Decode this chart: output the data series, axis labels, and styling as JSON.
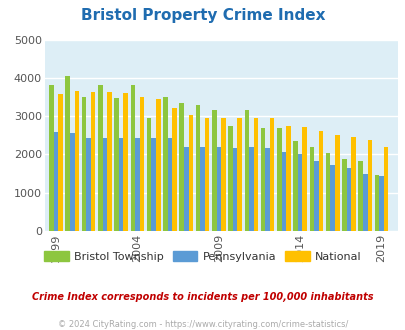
{
  "title": "Bristol Property Crime Index",
  "subtitle": "Crime Index corresponds to incidents per 100,000 inhabitants",
  "footer": "© 2024 CityRating.com - https://www.cityrating.com/crime-statistics/",
  "years": [
    1999,
    2000,
    2001,
    2002,
    2003,
    2004,
    2005,
    2006,
    2007,
    2008,
    2009,
    2010,
    2011,
    2012,
    2013,
    2014,
    2015,
    2016,
    2017,
    2018,
    2019
  ],
  "bristol": [
    3820,
    4040,
    3500,
    3820,
    3480,
    3820,
    2950,
    3500,
    3350,
    3300,
    3150,
    2730,
    3150,
    2680,
    2700,
    2350,
    2200,
    2050,
    1870,
    1840,
    1450
  ],
  "pennsylvania": [
    2580,
    2560,
    2440,
    2430,
    2420,
    2420,
    2430,
    2430,
    2200,
    2190,
    2200,
    2180,
    2200,
    2170,
    2060,
    2000,
    1830,
    1720,
    1640,
    1490,
    1440
  ],
  "national": [
    3580,
    3670,
    3640,
    3630,
    3600,
    3490,
    3440,
    3210,
    3040,
    2960,
    2960,
    2940,
    2940,
    2940,
    2730,
    2720,
    2600,
    2510,
    2450,
    2380,
    2200
  ],
  "bar_colors": {
    "bristol": "#8dc63f",
    "pennsylvania": "#5b9bd5",
    "national": "#ffc000"
  },
  "bg_color": "#ddeef6",
  "ylim": [
    0,
    5000
  ],
  "yticks": [
    0,
    1000,
    2000,
    3000,
    4000,
    5000
  ],
  "xtick_years": [
    1999,
    2004,
    2009,
    2014,
    2019
  ],
  "title_color": "#1f6cb0",
  "subtitle_color": "#c00000",
  "footer_color": "#aaaaaa",
  "legend_labels": [
    "Bristol Township",
    "Pennsylvania",
    "National"
  ],
  "bar_width": 0.28
}
